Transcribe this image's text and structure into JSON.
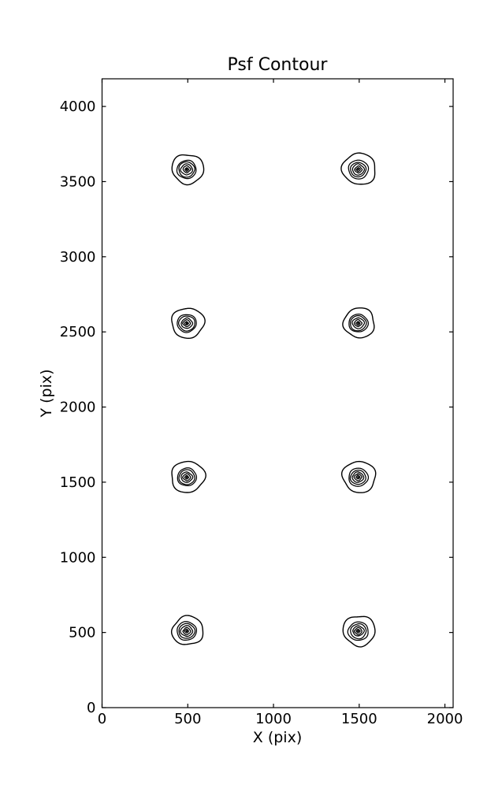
{
  "chart_data": {
    "type": "contour",
    "title": "Psf Contour",
    "xlabel": "X (pix)",
    "ylabel": "Y (pix)",
    "xlim": [
      0,
      2048
    ],
    "ylim": [
      0,
      4184
    ],
    "xticks": [
      0,
      500,
      1000,
      1500,
      2000
    ],
    "yticks": [
      0,
      500,
      1000,
      1500,
      2000,
      2500,
      3000,
      3500,
      4000
    ],
    "grid": false,
    "legend": "none",
    "line_color": "#000000",
    "background_color": "#ffffff",
    "psf_centers": [
      [
        500,
        512
      ],
      [
        1500,
        512
      ],
      [
        500,
        1536
      ],
      [
        1500,
        1536
      ],
      [
        500,
        2560
      ],
      [
        1500,
        2560
      ],
      [
        500,
        3584
      ],
      [
        1500,
        3584
      ]
    ],
    "contour_ring_radii_data_units": [
      94,
      57,
      45,
      34,
      23,
      12
    ],
    "center_dot_radius_data_units": 6
  }
}
